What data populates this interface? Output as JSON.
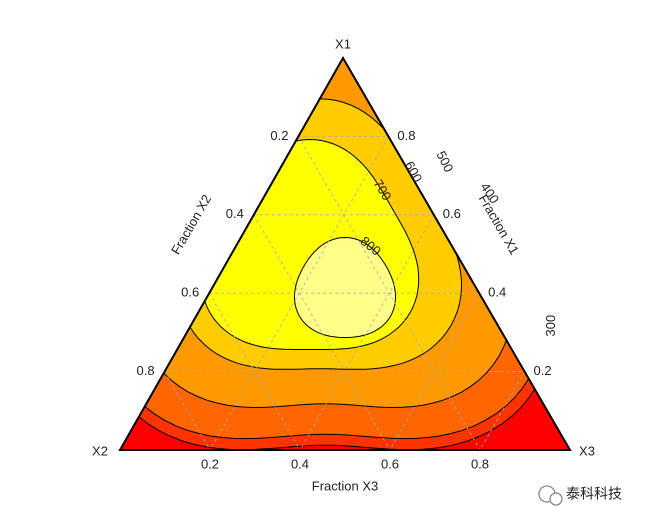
{
  "chart_data": {
    "type": "ternary-contour",
    "vertex_labels": [
      "X1",
      "X2",
      "X3"
    ],
    "axis_labels": {
      "x1": "Fraction X1",
      "x2": "Fraction X2",
      "x3": "Fraction X3"
    },
    "x1ticks": [
      0.2,
      0.4,
      0.6,
      0.8
    ],
    "x2ticks": [
      0.2,
      0.4,
      0.6,
      0.8
    ],
    "x3ticks": [
      0.2,
      0.4,
      0.6,
      0.8
    ],
    "levels": [
      300,
      400,
      500,
      600,
      700,
      800
    ],
    "colors": [
      "#ff0000",
      "#ff3300",
      "#ff6600",
      "#ff9900",
      "#ffcc00",
      "#ffff00",
      "#ffff88"
    ],
    "grid": true
  },
  "watermark": "泰科科技"
}
